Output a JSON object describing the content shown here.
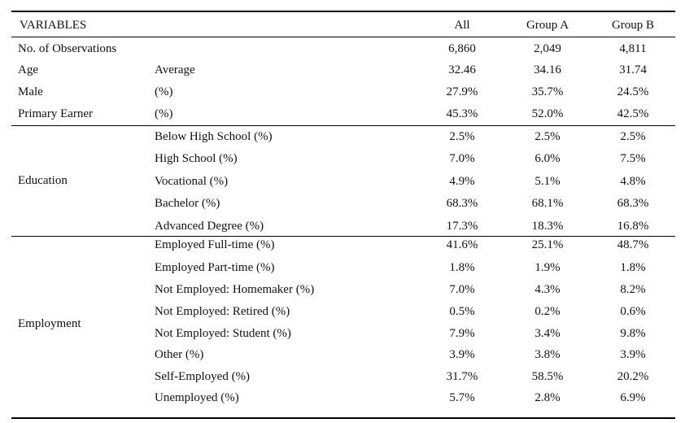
{
  "header": {
    "variables": "VARIABLES",
    "all": "All",
    "group_a": "Group A",
    "group_b": "Group B"
  },
  "top_rows": [
    {
      "label": "No. of Observations",
      "sub": "",
      "all": "6,860",
      "a": "2,049",
      "b": "4,811"
    },
    {
      "label": "Age",
      "sub": "Average",
      "all": "32.46",
      "a": "34.16",
      "b": "31.74"
    },
    {
      "label": "Male",
      "sub": "(%)",
      "all": "27.9%",
      "a": "35.7%",
      "b": "24.5%"
    },
    {
      "label": "Primary Earner",
      "sub": "(%)",
      "all": "45.3%",
      "a": "52.0%",
      "b": "42.5%"
    }
  ],
  "education": {
    "label": "Education",
    "rows": [
      {
        "sub": "Below High School (%)",
        "all": "2.5%",
        "a": "2.5%",
        "b": "2.5%"
      },
      {
        "sub": "High School (%)",
        "all": "7.0%",
        "a": "6.0%",
        "b": "7.5%"
      },
      {
        "sub": "Vocational (%)",
        "all": "4.9%",
        "a": "5.1%",
        "b": "4.8%"
      },
      {
        "sub": "Bachelor (%)",
        "all": "68.3%",
        "a": "68.1%",
        "b": "68.3%"
      },
      {
        "sub": "Advanced Degree (%)",
        "all": "17.3%",
        "a": "18.3%",
        "b": "16.8%"
      }
    ]
  },
  "employment": {
    "label": "Employment",
    "rows": [
      {
        "sub": "Employed Full-time (%)",
        "all": "41.6%",
        "a": "25.1%",
        "b": "48.7%"
      },
      {
        "sub": "Employed Part-time (%)",
        "all": "1.8%",
        "a": "1.9%",
        "b": "1.8%"
      },
      {
        "sub": "Not Employed: Homemaker (%)",
        "all": "7.0%",
        "a": "4.3%",
        "b": "8.2%"
      },
      {
        "sub": "Not Employed: Retired (%)",
        "all": "0.5%",
        "a": "0.2%",
        "b": "0.6%"
      },
      {
        "sub": "Not Employed: Student (%)",
        "all": "7.9%",
        "a": "3.4%",
        "b": "9.8%"
      },
      {
        "sub": "Other (%)",
        "all": "3.9%",
        "a": "3.8%",
        "b": "3.9%"
      },
      {
        "sub": "Self-Employed (%)",
        "all": "31.7%",
        "a": "58.5%",
        "b": "20.2%"
      },
      {
        "sub": "Unemployed (%)",
        "all": "5.7%",
        "a": "2.8%",
        "b": "6.9%"
      }
    ]
  }
}
